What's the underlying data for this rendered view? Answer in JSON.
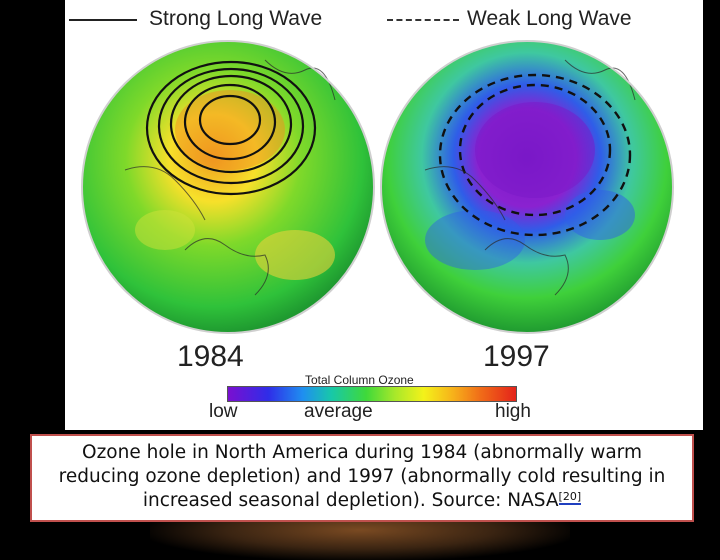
{
  "figure": {
    "legend_strong": "Strong Long Wave",
    "legend_weak": "Weak Long Wave",
    "year_left": "1984",
    "year_right": "1997",
    "scale_title": "Total Column Ozone",
    "scale_low": "low",
    "scale_average": "average",
    "scale_high": "high"
  },
  "caption": {
    "text": "Ozone hole in North America during 1984 (abnormally warm reducing ozone depletion) and 1997 (abnormally cold resulting in increased seasonal depletion). Source: NASA",
    "citation": "[20]"
  },
  "colors": {
    "caption_border": "#c0504d",
    "citation_underline": "#1f3fbf"
  }
}
